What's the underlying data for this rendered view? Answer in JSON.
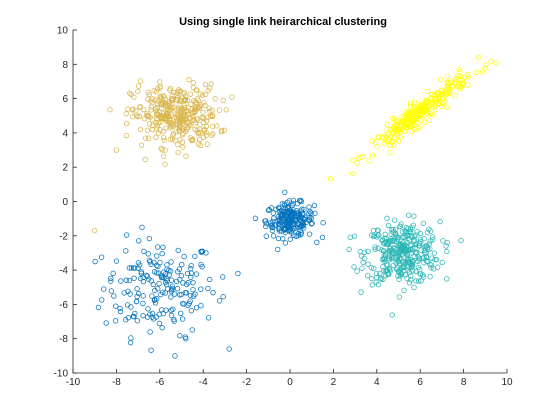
{
  "chart_data": {
    "type": "scatter",
    "title": "Using single link heirarchical clustering",
    "xlabel": "",
    "ylabel": "",
    "xlim": [
      -10,
      10
    ],
    "ylim": [
      -10,
      10
    ],
    "xticks": [
      -10,
      -8,
      -6,
      -4,
      -2,
      0,
      2,
      4,
      6,
      8,
      10
    ],
    "yticks": [
      -10,
      -8,
      -6,
      -4,
      -2,
      0,
      2,
      4,
      6,
      8,
      10
    ],
    "grid": false,
    "marker": "open-circle",
    "series": [
      {
        "color": "#0072bd",
        "cluster": {
          "center": [
            -6,
            -5
          ],
          "spread": [
            1.3,
            1.4
          ],
          "n": 190
        },
        "extra_points": [
          [
            -5.3,
            -9.0
          ],
          [
            -4.8,
            -8.0
          ],
          [
            -2.8,
            -8.6
          ],
          [
            -3.1,
            -4.4
          ],
          [
            -2.4,
            -4.2
          ]
        ]
      },
      {
        "color": "#0072bd",
        "cluster": {
          "center": [
            0,
            -1.1
          ],
          "spread": [
            0.55,
            0.5
          ],
          "n": 210
        }
      },
      {
        "color": "#2bb6b6",
        "cluster": {
          "center": [
            5.2,
            -3.0
          ],
          "spread": [
            0.85,
            0.9
          ],
          "n": 330
        }
      },
      {
        "color": "#d9b54a",
        "cluster": {
          "center": [
            -5.3,
            5.0
          ],
          "spread": [
            1.0,
            0.9
          ],
          "n": 330
        },
        "extra_points": [
          [
            -8.0,
            3.0
          ],
          [
            -9.0,
            -1.7
          ]
        ]
      },
      {
        "color": "#ffff00",
        "cluster": {
          "center": [
            6.0,
            5.2
          ],
          "spread": [
            1.1,
            0.35
          ],
          "n": 280,
          "slope": 0.95
        },
        "extra_points": [
          [
            2.9,
            2.4
          ],
          [
            8.7,
            8.4
          ],
          [
            9.5,
            8.1
          ]
        ]
      }
    ]
  }
}
